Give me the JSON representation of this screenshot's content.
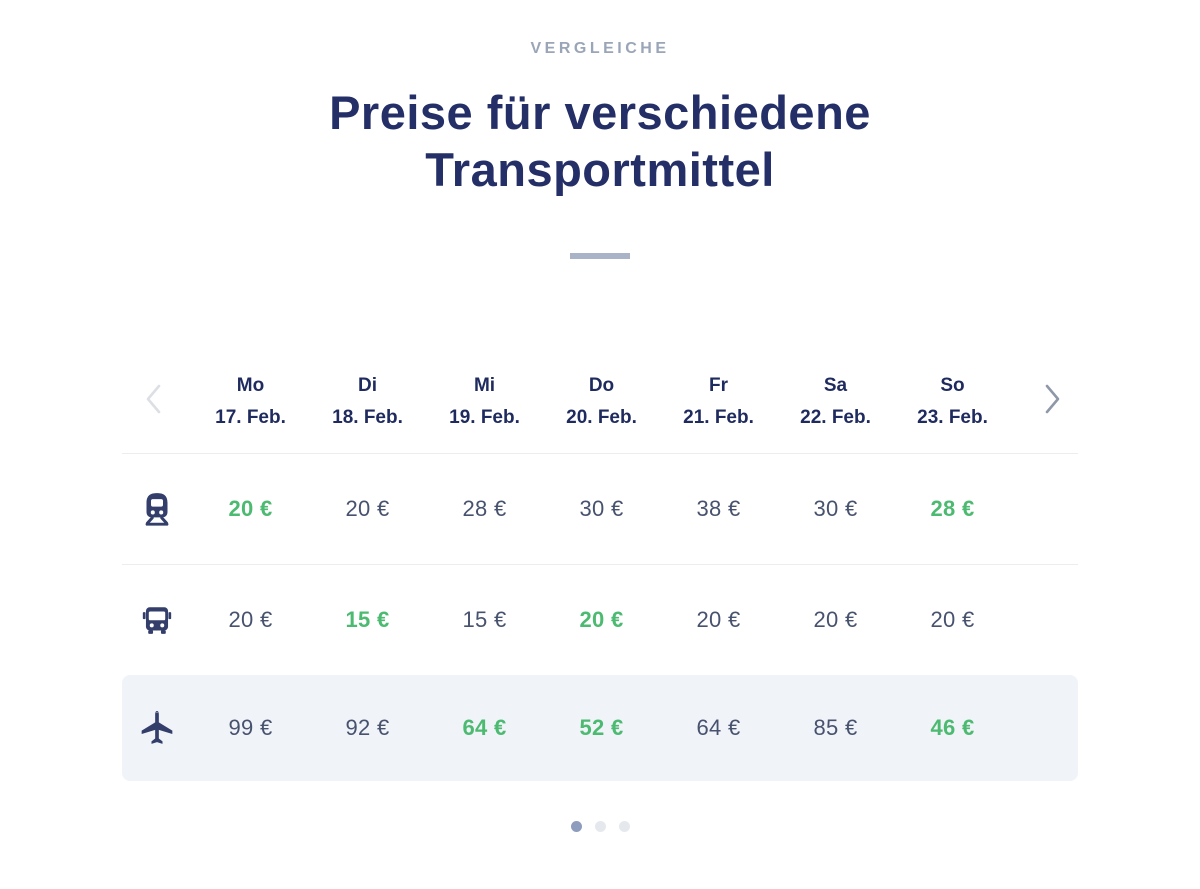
{
  "section": {
    "eyebrow": "VERGLEICHE",
    "title_line1": "Preise für verschiedene",
    "title_line2": "Transportmittel"
  },
  "carousel": {
    "nav": {
      "prev_icon": "chevron-left-icon",
      "next_icon": "chevron-right-icon"
    },
    "columns": [
      {
        "day": "Mo",
        "date": "17. Feb."
      },
      {
        "day": "Di",
        "date": "18. Feb."
      },
      {
        "day": "Mi",
        "date": "19. Feb."
      },
      {
        "day": "Do",
        "date": "20. Feb."
      },
      {
        "day": "Fr",
        "date": "21. Feb."
      },
      {
        "day": "Sa",
        "date": "22. Feb."
      },
      {
        "day": "So",
        "date": "23. Feb."
      }
    ],
    "rows": [
      {
        "mode": "train",
        "icon": "train-icon",
        "highlighted_row": false,
        "prices": [
          {
            "text": "20 €",
            "green": true
          },
          {
            "text": "20 €",
            "green": false
          },
          {
            "text": "28 €",
            "green": false
          },
          {
            "text": "30 €",
            "green": false
          },
          {
            "text": "38 €",
            "green": false
          },
          {
            "text": "30 €",
            "green": false
          },
          {
            "text": "28 €",
            "green": true
          }
        ]
      },
      {
        "mode": "bus",
        "icon": "bus-icon",
        "highlighted_row": false,
        "prices": [
          {
            "text": "20 €",
            "green": false
          },
          {
            "text": "15 €",
            "green": true
          },
          {
            "text": "15 €",
            "green": false
          },
          {
            "text": "20 €",
            "green": true
          },
          {
            "text": "20 €",
            "green": false
          },
          {
            "text": "20 €",
            "green": false
          },
          {
            "text": "20 €",
            "green": false
          }
        ]
      },
      {
        "mode": "plane",
        "icon": "plane-icon",
        "highlighted_row": true,
        "prices": [
          {
            "text": "99 €",
            "green": false
          },
          {
            "text": "92 €",
            "green": false
          },
          {
            "text": "64 €",
            "green": true
          },
          {
            "text": "52 €",
            "green": true
          },
          {
            "text": "64 €",
            "green": false
          },
          {
            "text": "85 €",
            "green": false
          },
          {
            "text": "46 €",
            "green": true
          }
        ]
      }
    ],
    "pagination": {
      "count": 3,
      "active_index": 0
    }
  },
  "colors": {
    "navy": "#232f66",
    "header-navy": "#1f2b5e",
    "price": "#47526e",
    "green": "#4cba70",
    "eyebrow": "#9aa5b8",
    "divider-accent": "#a9b4c9",
    "row-highlight": "#f0f3f8",
    "dot-active": "#8e9cbd",
    "dot-inactive": "#e5e9ee",
    "chevron-left": "#dcdfe4",
    "chevron-right": "#8f98a9",
    "icon-navy": "#333e6b"
  }
}
